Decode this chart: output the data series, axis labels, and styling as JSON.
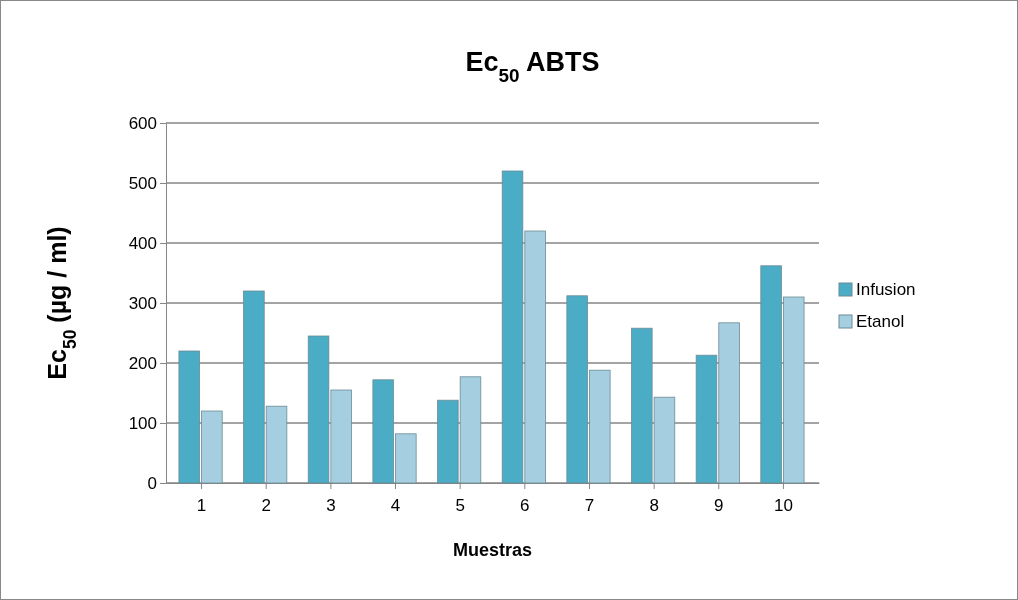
{
  "chart_data": {
    "type": "bar",
    "title": "Ec$_{50}$  ABTS",
    "xlabel": "Muestras",
    "ylabel": "Ec$_{50}$  (µg / ml)",
    "categories": [
      "1",
      "2",
      "3",
      "4",
      "5",
      "6",
      "7",
      "8",
      "9",
      "10"
    ],
    "series": [
      {
        "name": "Infusion",
        "color": "#4bacc6",
        "values": [
          220,
          320,
          245,
          172,
          138,
          520,
          312,
          258,
          213,
          362
        ]
      },
      {
        "name": "Etanol",
        "color": "#a5cfe0",
        "values": [
          120,
          128,
          155,
          82,
          177,
          420,
          188,
          143,
          267,
          310
        ]
      }
    ],
    "ylim": [
      0,
      600
    ],
    "yticks": [
      0,
      100,
      200,
      300,
      400,
      500,
      600
    ],
    "grid": "y",
    "legend": "right"
  }
}
